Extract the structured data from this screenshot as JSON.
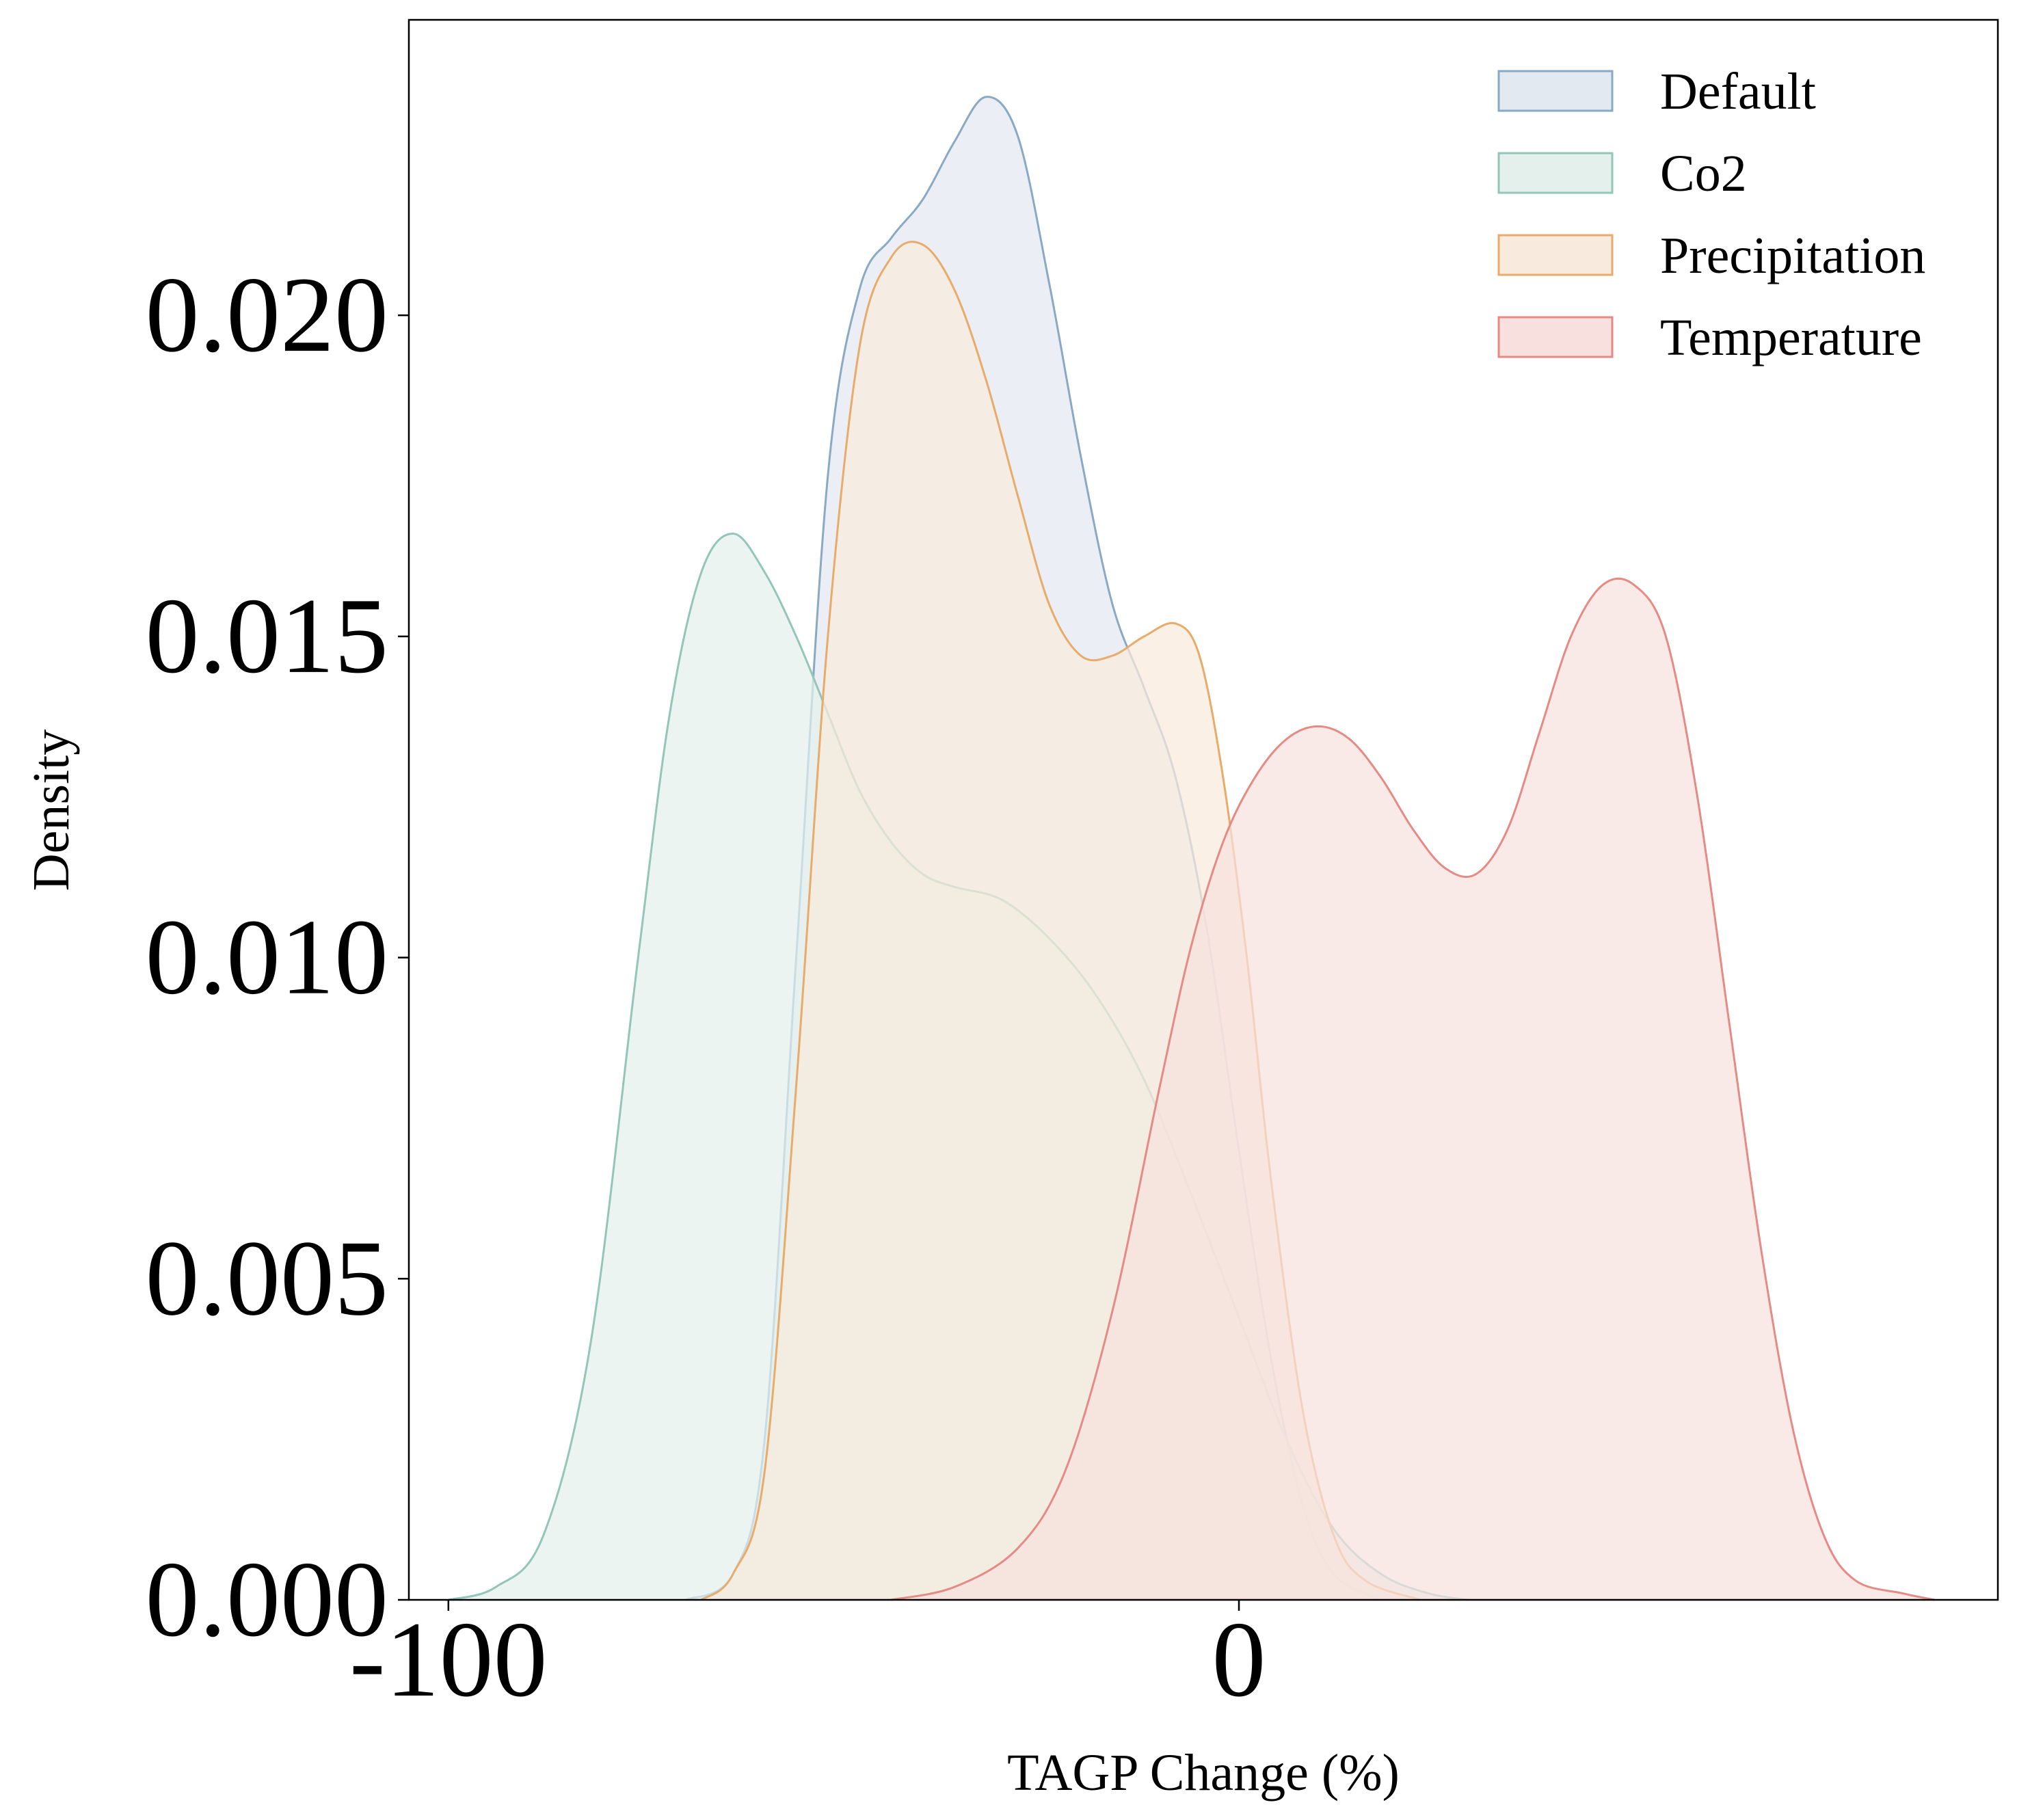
{
  "chart_data": {
    "type": "area",
    "title": "",
    "xlabel": "TAGP Change (%)",
    "ylabel": "Density",
    "xlim": [
      -105,
      96
    ],
    "ylim": [
      0,
      0.0246
    ],
    "x_ticks": [
      {
        "value": -100,
        "label": "-100"
      },
      {
        "value": 0,
        "label": "0"
      }
    ],
    "y_ticks": [
      {
        "value": 0.0,
        "label": "0.000"
      },
      {
        "value": 0.005,
        "label": "0.005"
      },
      {
        "value": 0.01,
        "label": "0.010"
      },
      {
        "value": 0.015,
        "label": "0.015"
      },
      {
        "value": 0.02,
        "label": "0.020"
      }
    ],
    "grid": false,
    "legend_position": "top-right",
    "series": [
      {
        "name": "Default",
        "line_color": "#8aa9c5",
        "fill_color": "#e3e9f1",
        "points": [
          [
            -70,
            0
          ],
          [
            -64,
            0.0004
          ],
          [
            -60,
            0.0025
          ],
          [
            -56,
            0.01
          ],
          [
            -52,
            0.0175
          ],
          [
            -48,
            0.0204
          ],
          [
            -44,
            0.0212
          ],
          [
            -40,
            0.0218
          ],
          [
            -36,
            0.0227
          ],
          [
            -32,
            0.0234
          ],
          [
            -28,
            0.0228
          ],
          [
            -24,
            0.0205
          ],
          [
            -20,
            0.0178
          ],
          [
            -16,
            0.0155
          ],
          [
            -12,
            0.0142
          ],
          [
            -8,
            0.0128
          ],
          [
            -4,
            0.0104
          ],
          [
            0,
            0.007
          ],
          [
            4,
            0.0038
          ],
          [
            8,
            0.0015
          ],
          [
            12,
            0.0004
          ],
          [
            18,
            0
          ]
        ]
      },
      {
        "name": "Co2",
        "line_color": "#93c6b9",
        "fill_color": "#e3f0ec",
        "points": [
          [
            -100,
            0
          ],
          [
            -94,
            0.0002
          ],
          [
            -88,
            0.001
          ],
          [
            -82,
            0.004
          ],
          [
            -76,
            0.01
          ],
          [
            -72,
            0.0138
          ],
          [
            -68,
            0.016
          ],
          [
            -64,
            0.0166
          ],
          [
            -60,
            0.016
          ],
          [
            -56,
            0.015
          ],
          [
            -52,
            0.0138
          ],
          [
            -48,
            0.0126
          ],
          [
            -44,
            0.0118
          ],
          [
            -40,
            0.0113
          ],
          [
            -36,
            0.0111
          ],
          [
            -30,
            0.0109
          ],
          [
            -24,
            0.0103
          ],
          [
            -18,
            0.0094
          ],
          [
            -12,
            0.0081
          ],
          [
            -6,
            0.0063
          ],
          [
            0,
            0.0044
          ],
          [
            6,
            0.0025
          ],
          [
            12,
            0.0011
          ],
          [
            18,
            0.0004
          ],
          [
            24,
            0.0001
          ],
          [
            29,
            0
          ]
        ]
      },
      {
        "name": "Precipitation",
        "line_color": "#e8ab6a",
        "fill_color": "#f8eadd",
        "points": [
          [
            -68,
            0
          ],
          [
            -64,
            0.0004
          ],
          [
            -60,
            0.002
          ],
          [
            -56,
            0.008
          ],
          [
            -52,
            0.015
          ],
          [
            -48,
            0.0195
          ],
          [
            -44,
            0.0209
          ],
          [
            -40,
            0.0211
          ],
          [
            -36,
            0.0204
          ],
          [
            -32,
            0.019
          ],
          [
            -28,
            0.0172
          ],
          [
            -24,
            0.0155
          ],
          [
            -20,
            0.0147
          ],
          [
            -16,
            0.0147
          ],
          [
            -12,
            0.015
          ],
          [
            -8,
            0.0152
          ],
          [
            -5,
            0.0147
          ],
          [
            -2,
            0.0128
          ],
          [
            1,
            0.01
          ],
          [
            4,
            0.0066
          ],
          [
            8,
            0.003
          ],
          [
            12,
            0.001
          ],
          [
            16,
            0.0003
          ],
          [
            23,
            0
          ]
        ]
      },
      {
        "name": "Temperature",
        "line_color": "#e68a85",
        "fill_color": "#f7e0de",
        "points": [
          [
            -44,
            0
          ],
          [
            -36,
            0.0002
          ],
          [
            -28,
            0.0008
          ],
          [
            -22,
            0.002
          ],
          [
            -16,
            0.0045
          ],
          [
            -10,
            0.008
          ],
          [
            -6,
            0.0102
          ],
          [
            -2,
            0.0118
          ],
          [
            2,
            0.0128
          ],
          [
            6,
            0.0134
          ],
          [
            10,
            0.0136
          ],
          [
            14,
            0.0134
          ],
          [
            18,
            0.0128
          ],
          [
            22,
            0.012
          ],
          [
            26,
            0.0114
          ],
          [
            30,
            0.0113
          ],
          [
            34,
            0.012
          ],
          [
            38,
            0.0135
          ],
          [
            42,
            0.015
          ],
          [
            46,
            0.0158
          ],
          [
            50,
            0.0158
          ],
          [
            54,
            0.015
          ],
          [
            58,
            0.0125
          ],
          [
            62,
            0.009
          ],
          [
            66,
            0.0055
          ],
          [
            70,
            0.0027
          ],
          [
            74,
            0.001
          ],
          [
            78,
            0.0003
          ],
          [
            84,
            0.0001
          ],
          [
            88,
            0
          ]
        ]
      }
    ]
  }
}
